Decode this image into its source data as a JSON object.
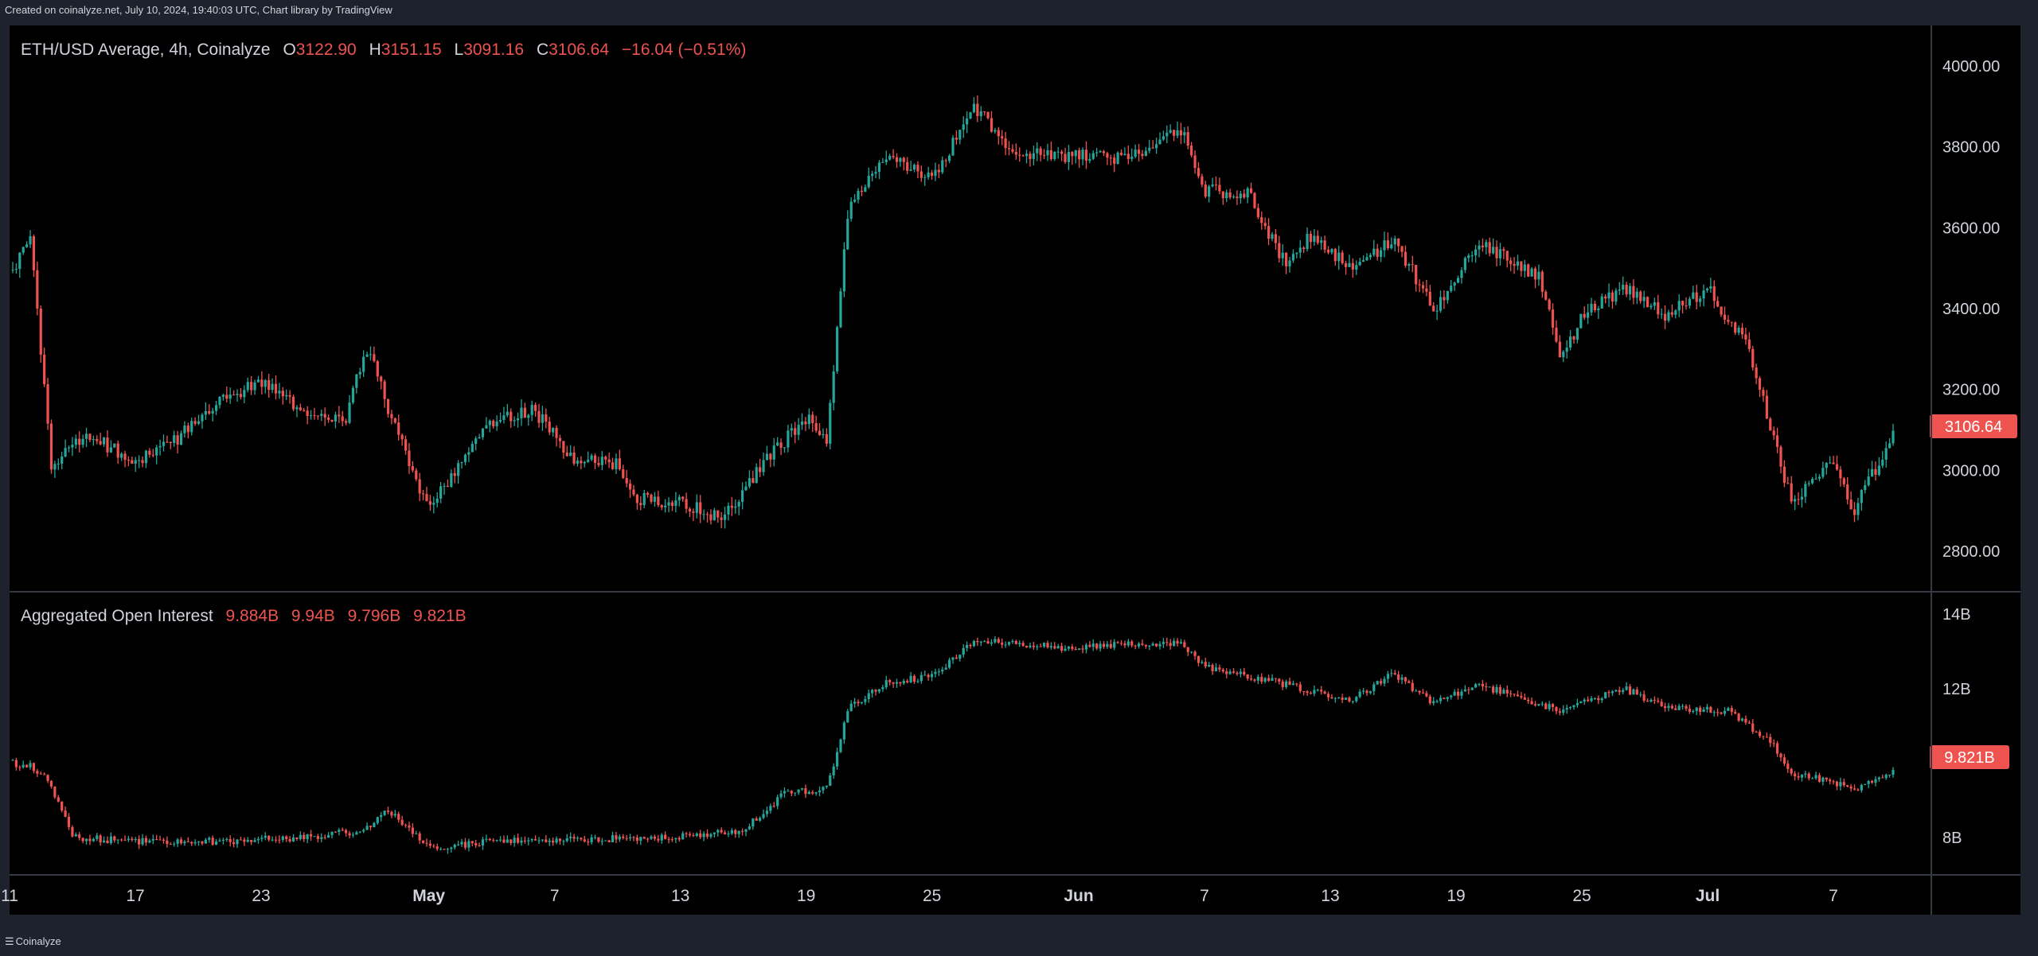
{
  "credit": "Created on coinalyze.net, July 10, 2024, 19:40:03 UTC, Chart library by TradingView",
  "footer_logo": "Coinalyze",
  "colors": {
    "up": "#26a69a",
    "down": "#ef5350",
    "text": "#d1d4dc",
    "background": "#000000",
    "frame": "#1e222d"
  },
  "chart_data": [
    {
      "type": "candlestick",
      "title": "ETH/USD Average, 4h, Coinalyze",
      "legend": {
        "o_label": "O",
        "o": "3122.90",
        "h_label": "H",
        "h": "3151.15",
        "l_label": "L",
        "l": "3091.16",
        "c_label": "C",
        "c": "3106.64",
        "change": "−16.04 (−0.51%)"
      },
      "last_value_label": "3106.64",
      "ylim": [
        2700,
        4100
      ],
      "yticks": [
        "4000.00",
        "3800.00",
        "3600.00",
        "3400.00",
        "3200.00",
        "3000.00",
        "2800.00"
      ],
      "ytick_values": [
        4000,
        3800,
        3600,
        3400,
        3200,
        3000,
        2800
      ],
      "x_date_range": [
        "2024-04-11",
        "2024-07-10"
      ],
      "path_anchors": [
        [
          "2024-04-11",
          3480
        ],
        [
          "2024-04-12",
          3570
        ],
        [
          "2024-04-13",
          3010
        ],
        [
          "2024-04-14",
          3080
        ],
        [
          "2024-04-15",
          3080
        ],
        [
          "2024-04-17",
          3020
        ],
        [
          "2024-04-19",
          3080
        ],
        [
          "2024-04-21",
          3170
        ],
        [
          "2024-04-23",
          3220
        ],
        [
          "2024-04-25",
          3150
        ],
        [
          "2024-04-27",
          3120
        ],
        [
          "2024-04-28",
          3310
        ],
        [
          "2024-04-30",
          3020
        ],
        [
          "2024-05-01",
          2900
        ],
        [
          "2024-05-02",
          2980
        ],
        [
          "2024-05-04",
          3120
        ],
        [
          "2024-05-06",
          3150
        ],
        [
          "2024-05-08",
          3020
        ],
        [
          "2024-05-10",
          3020
        ],
        [
          "2024-05-11",
          2930
        ],
        [
          "2024-05-13",
          2920
        ],
        [
          "2024-05-15",
          2880
        ],
        [
          "2024-05-17",
          3020
        ],
        [
          "2024-05-19",
          3130
        ],
        [
          "2024-05-20",
          3080
        ],
        [
          "2024-05-21",
          3650
        ],
        [
          "2024-05-23",
          3780
        ],
        [
          "2024-05-25",
          3720
        ],
        [
          "2024-05-27",
          3900
        ],
        [
          "2024-05-29",
          3780
        ],
        [
          "2024-05-31",
          3780
        ],
        [
          "2024-06-03",
          3770
        ],
        [
          "2024-06-06",
          3840
        ],
        [
          "2024-06-07",
          3690
        ],
        [
          "2024-06-09",
          3690
        ],
        [
          "2024-06-11",
          3500
        ],
        [
          "2024-06-12",
          3580
        ],
        [
          "2024-06-14",
          3500
        ],
        [
          "2024-06-16",
          3570
        ],
        [
          "2024-06-18",
          3400
        ],
        [
          "2024-06-20",
          3560
        ],
        [
          "2024-06-23",
          3480
        ],
        [
          "2024-06-24",
          3270
        ],
        [
          "2024-06-25",
          3380
        ],
        [
          "2024-06-27",
          3450
        ],
        [
          "2024-06-29",
          3380
        ],
        [
          "2024-07-01",
          3450
        ],
        [
          "2024-07-03",
          3300
        ],
        [
          "2024-07-05",
          2920
        ],
        [
          "2024-07-07",
          3020
        ],
        [
          "2024-07-08",
          2900
        ],
        [
          "2024-07-10",
          3106
        ]
      ]
    },
    {
      "type": "candlestick",
      "title": "Aggregated Open Interest",
      "legend": {
        "o": "9.884B",
        "h": "9.94B",
        "l": "9.796B",
        "c": "9.821B"
      },
      "last_value_label": "9.821B",
      "unit": "B",
      "ylim": [
        7.0,
        14.6
      ],
      "yticks": [
        "14B",
        "12B",
        "8B"
      ],
      "ytick_values": [
        14,
        12,
        8
      ],
      "x_date_range": [
        "2024-04-11",
        "2024-07-10"
      ],
      "path_anchors": [
        [
          "2024-04-11",
          10.0
        ],
        [
          "2024-04-12",
          9.95
        ],
        [
          "2024-04-13",
          9.4
        ],
        [
          "2024-04-14",
          8.0
        ],
        [
          "2024-04-17",
          7.9
        ],
        [
          "2024-04-21",
          7.9
        ],
        [
          "2024-04-25",
          8.0
        ],
        [
          "2024-04-28",
          8.2
        ],
        [
          "2024-04-29",
          8.8
        ],
        [
          "2024-05-01",
          7.7
        ],
        [
          "2024-05-04",
          7.9
        ],
        [
          "2024-05-08",
          7.95
        ],
        [
          "2024-05-12",
          8.0
        ],
        [
          "2024-05-16",
          8.2
        ],
        [
          "2024-05-18",
          9.2
        ],
        [
          "2024-05-20",
          9.3
        ],
        [
          "2024-05-21",
          11.5
        ],
        [
          "2024-05-23",
          12.2
        ],
        [
          "2024-05-25",
          12.3
        ],
        [
          "2024-05-27",
          13.3
        ],
        [
          "2024-05-31",
          13.1
        ],
        [
          "2024-06-04",
          13.2
        ],
        [
          "2024-06-06",
          13.2
        ],
        [
          "2024-06-07",
          12.6
        ],
        [
          "2024-06-11",
          12.1
        ],
        [
          "2024-06-14",
          11.7
        ],
        [
          "2024-06-16",
          12.4
        ],
        [
          "2024-06-18",
          11.6
        ],
        [
          "2024-06-20",
          12.1
        ],
        [
          "2024-06-22",
          11.8
        ],
        [
          "2024-06-24",
          11.4
        ],
        [
          "2024-06-27",
          12.0
        ],
        [
          "2024-06-29",
          11.5
        ],
        [
          "2024-07-02",
          11.4
        ],
        [
          "2024-07-04",
          10.6
        ],
        [
          "2024-07-05",
          9.7
        ],
        [
          "2024-07-07",
          9.5
        ],
        [
          "2024-07-08",
          9.3
        ],
        [
          "2024-07-10",
          9.82
        ]
      ]
    }
  ],
  "xaxis": {
    "ticks": [
      {
        "label": "11",
        "date": "2024-04-11",
        "bold": false
      },
      {
        "label": "17",
        "date": "2024-04-17",
        "bold": false
      },
      {
        "label": "23",
        "date": "2024-04-23",
        "bold": false
      },
      {
        "label": "May",
        "date": "2024-05-01",
        "bold": true
      },
      {
        "label": "7",
        "date": "2024-05-07",
        "bold": false
      },
      {
        "label": "13",
        "date": "2024-05-13",
        "bold": false
      },
      {
        "label": "19",
        "date": "2024-05-19",
        "bold": false
      },
      {
        "label": "25",
        "date": "2024-05-25",
        "bold": false
      },
      {
        "label": "Jun",
        "date": "2024-06-01",
        "bold": true
      },
      {
        "label": "7",
        "date": "2024-06-07",
        "bold": false
      },
      {
        "label": "13",
        "date": "2024-06-13",
        "bold": false
      },
      {
        "label": "19",
        "date": "2024-06-19",
        "bold": false
      },
      {
        "label": "25",
        "date": "2024-06-25",
        "bold": false
      },
      {
        "label": "Jul",
        "date": "2024-07-01",
        "bold": true
      },
      {
        "label": "7",
        "date": "2024-07-07",
        "bold": false
      }
    ]
  }
}
